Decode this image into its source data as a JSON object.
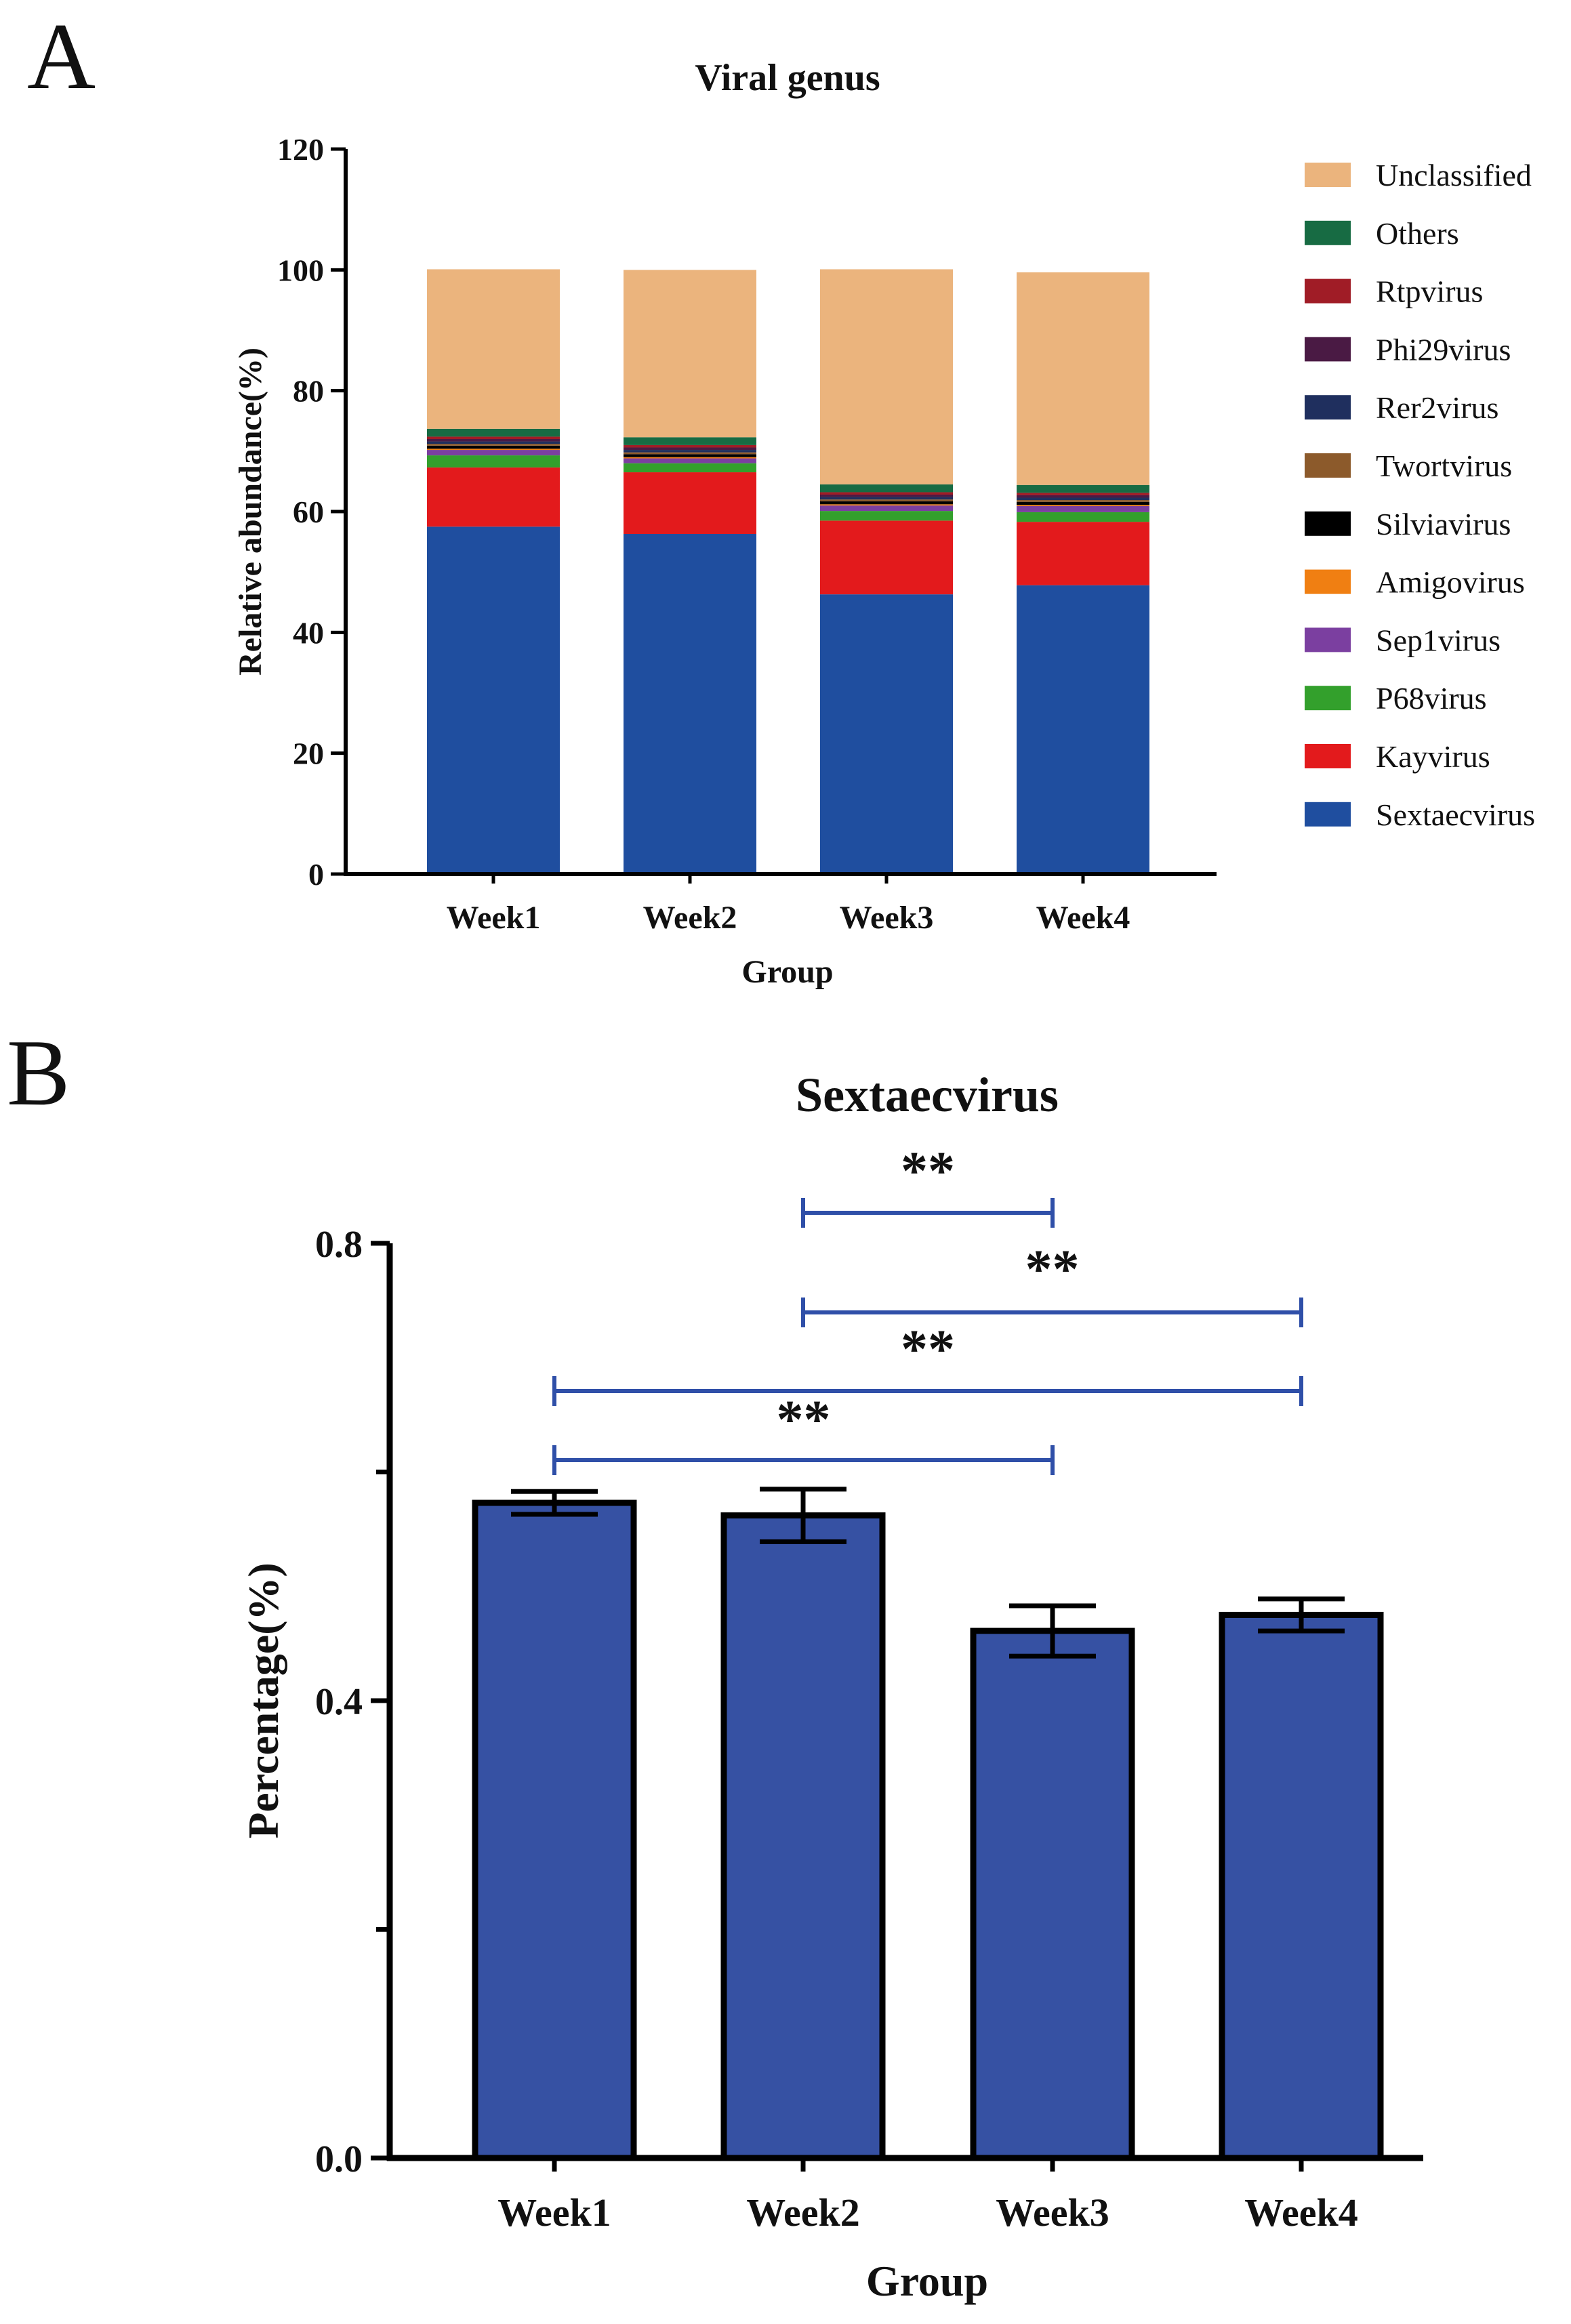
{
  "panels": {
    "a_label": "A",
    "b_label": "B"
  },
  "chart_data": [
    {
      "type": "bar",
      "stacked": true,
      "title": "Viral genus",
      "xlabel": "Group",
      "ylabel": "Relative abundance(%)",
      "ylim": [
        0,
        120
      ],
      "yticks": [
        "0",
        "20",
        "40",
        "60",
        "80",
        "100",
        "120"
      ],
      "categories": [
        "Week1",
        "Week2",
        "Week3",
        "Week4"
      ],
      "legend_position": "right",
      "series": [
        {
          "name": "Sextaecvirus",
          "color": "#1f4e9f",
          "values": [
            57.5,
            56.3,
            46.3,
            47.8
          ]
        },
        {
          "name": "Kayvirus",
          "color": "#e31a1c",
          "values": [
            9.8,
            10.2,
            12.2,
            10.5
          ]
        },
        {
          "name": "P68virus",
          "color": "#33a02c",
          "values": [
            2.0,
            1.5,
            1.6,
            1.6
          ]
        },
        {
          "name": "Sep1virus",
          "color": "#7b3fa0",
          "values": [
            0.9,
            0.8,
            0.9,
            1.0
          ]
        },
        {
          "name": "Amigovirus",
          "color": "#f07f12",
          "values": [
            0.2,
            0.2,
            0.2,
            0.2
          ]
        },
        {
          "name": "Silviavirus",
          "color": "#000000",
          "values": [
            0.5,
            0.5,
            0.5,
            0.5
          ]
        },
        {
          "name": "Twortvirus",
          "color": "#8c5a2b",
          "values": [
            0.3,
            0.3,
            0.3,
            0.3
          ]
        },
        {
          "name": "Rer2virus",
          "color": "#1f2f5e",
          "values": [
            0.4,
            0.4,
            0.4,
            0.4
          ]
        },
        {
          "name": "Phi29virus",
          "color": "#4a1a44",
          "values": [
            0.4,
            0.4,
            0.4,
            0.4
          ]
        },
        {
          "name": "Rtpvirus",
          "color": "#a01c26",
          "values": [
            0.4,
            0.4,
            0.4,
            0.4
          ]
        },
        {
          "name": "Others",
          "color": "#176b43",
          "values": [
            1.3,
            1.3,
            1.3,
            1.3
          ]
        },
        {
          "name": "Unclassified",
          "color": "#ebb47d",
          "values": [
            26.4,
            27.7,
            35.6,
            35.2
          ]
        }
      ]
    },
    {
      "type": "bar",
      "title": "Sextaecvirus",
      "xlabel": "Group",
      "ylabel": "Percentage(%)",
      "ylim": [
        0,
        0.8
      ],
      "yticks_labeled": [
        "0.0",
        "0.4",
        "0.8"
      ],
      "yticks_minor": [
        0.2,
        0.6
      ],
      "categories": [
        "Week1",
        "Week2",
        "Week3",
        "Week4"
      ],
      "bar_color": "#3651a3",
      "values": [
        0.573,
        0.562,
        0.461,
        0.475
      ],
      "errors": [
        0.01,
        0.023,
        0.022,
        0.014
      ],
      "significance": [
        {
          "from": "Week2",
          "to": "Week3",
          "label": "**"
        },
        {
          "from": "Week2",
          "to": "Week4",
          "label": "**"
        },
        {
          "from": "Week1",
          "to": "Week4",
          "label": "**"
        },
        {
          "from": "Week1",
          "to": "Week3",
          "label": "**"
        }
      ],
      "bracket_color": "#2f4fa8"
    }
  ]
}
